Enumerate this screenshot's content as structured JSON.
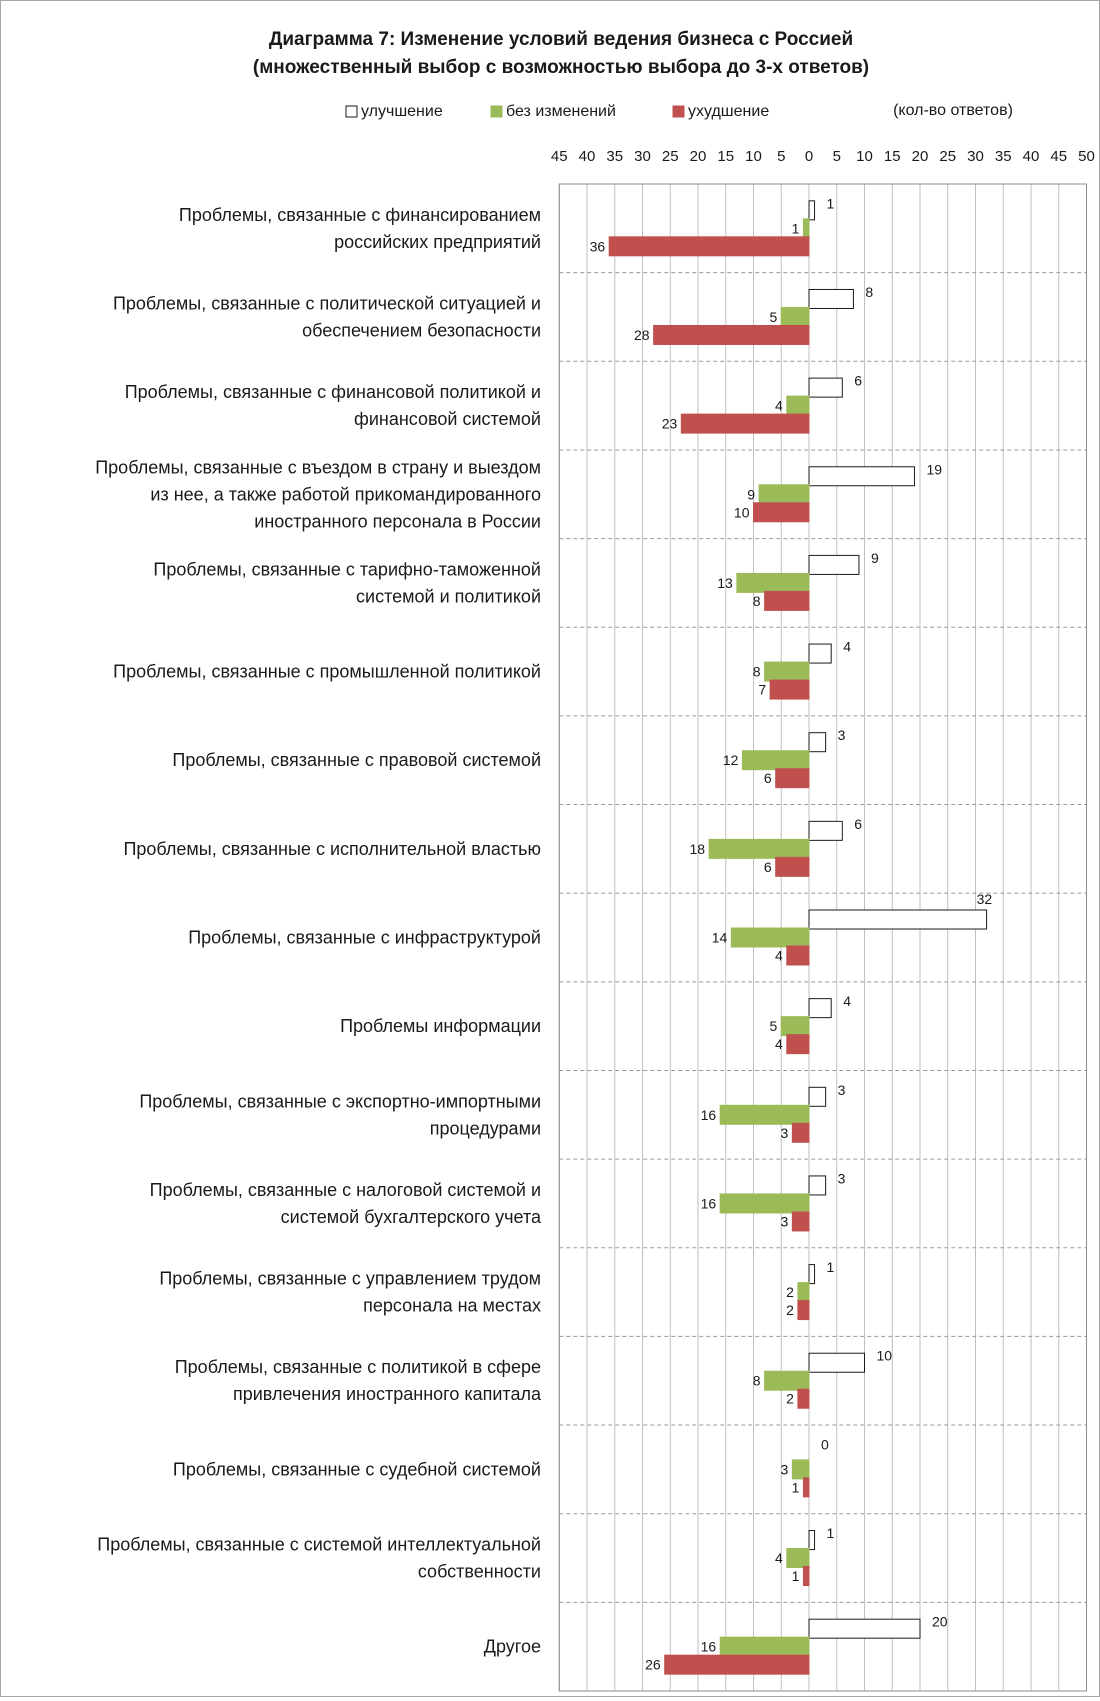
{
  "chart_data": {
    "type": "bar",
    "orientation": "horizontal",
    "title": "Диаграмма 7: Изменение условий ведения бизнеса с Россией",
    "subtitle": "(множественный выбор с возможностью выбора до 3-х ответов)",
    "units_note": "(кол-во ответов)",
    "legend_position": "top",
    "grid": true,
    "xlim_left": [
      0,
      45
    ],
    "xlim_right": [
      0,
      50
    ],
    "ticks_left": [
      "45",
      "40",
      "35",
      "30",
      "25",
      "20",
      "15",
      "10",
      "5",
      "0"
    ],
    "ticks_right": [
      "5",
      "10",
      "15",
      "20",
      "25",
      "30",
      "35",
      "40",
      "45",
      "50"
    ],
    "categories": [
      [
        "Проблемы, связанные с финансированием",
        "российских предприятий"
      ],
      [
        "Проблемы, связанные с политической ситуацией и",
        "обеспечением безопасности"
      ],
      [
        "Проблемы, связанные с финансовой политикой и",
        "финансовой системой"
      ],
      [
        "Проблемы, связанные с въездом в страну и выездом",
        "из нее, а также работой прикомандированного",
        "иностранного персонала в России"
      ],
      [
        "Проблемы, связанные с тарифно-таможенной",
        "системой и политикой"
      ],
      [
        "Проблемы, связанные с промышленной политикой"
      ],
      [
        "Проблемы, связанные с правовой системой"
      ],
      [
        "Проблемы, связанные с исполнительной властью"
      ],
      [
        "Проблемы, связанные с инфраструктурой"
      ],
      [
        "Проблемы информации"
      ],
      [
        "Проблемы, связанные с экспортно-импортными",
        "процедурами"
      ],
      [
        "Проблемы, связанные с налоговой системой и",
        "системой бухгалтерского учета"
      ],
      [
        "Проблемы, связанные с управлением трудом",
        "персонала на местах"
      ],
      [
        "Проблемы, связанные с политикой в сфере",
        "привлечения иностранного капитала"
      ],
      [
        "Проблемы, связанные с судебной системой"
      ],
      [
        "Проблемы, связанные с системой интеллектуальной",
        "собственности"
      ],
      [
        "Другое"
      ]
    ],
    "series": [
      {
        "name": "улучшение",
        "color": "#ffffff",
        "stroke": "#1a1a1a",
        "direction": "right",
        "values": [
          1,
          8,
          6,
          19,
          9,
          4,
          3,
          6,
          32,
          4,
          3,
          3,
          1,
          10,
          0,
          1,
          20
        ]
      },
      {
        "name": "без изменений",
        "color": "#9bbb59",
        "stroke": "#9bbb59",
        "direction": "left",
        "values": [
          1,
          5,
          4,
          9,
          13,
          8,
          12,
          18,
          14,
          5,
          16,
          16,
          2,
          8,
          3,
          4,
          16
        ]
      },
      {
        "name": "ухудшение",
        "color": "#c0504d",
        "stroke": "#c0504d",
        "direction": "left",
        "values": [
          36,
          28,
          23,
          10,
          8,
          7,
          6,
          6,
          4,
          4,
          3,
          3,
          2,
          2,
          1,
          1,
          26
        ]
      }
    ]
  }
}
